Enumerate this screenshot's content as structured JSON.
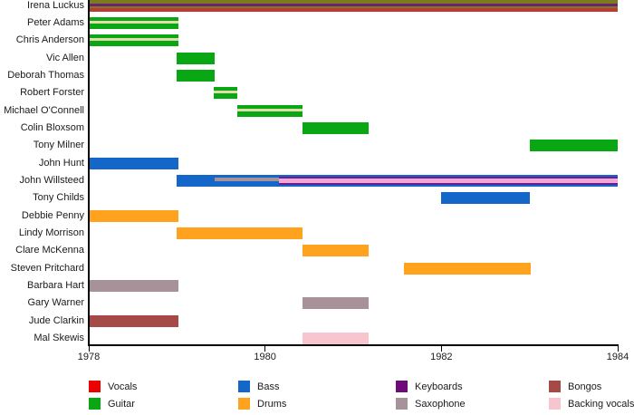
{
  "page": {
    "background": "#ffffff"
  },
  "palette": {
    "vocals": "#ee0000",
    "guitar": "#0aa715",
    "bass": "#1467c8",
    "drums": "#ffa21d",
    "keyboards": "#6d0b78",
    "saxophone": "#a7929a",
    "bongos": "#a54a47",
    "backing": "#f6c5ce",
    "olive": "#7c7a1e",
    "vocals_dark": "#c03a34",
    "keyboards_mid": "#6b2473",
    "cream": "#e2dbac",
    "willsteed_purple": "#651e93",
    "willsteed_pink": "#f2a7d2"
  },
  "legend": {
    "items": [
      {
        "label": "Vocals",
        "color_key": "vocals"
      },
      {
        "label": "Guitar",
        "color_key": "guitar"
      },
      {
        "label": "Bass",
        "color_key": "bass"
      },
      {
        "label": "Drums",
        "color_key": "drums"
      },
      {
        "label": "Keyboards",
        "color_key": "keyboards"
      },
      {
        "label": "Saxophone",
        "color_key": "saxophone"
      },
      {
        "label": "Bongos",
        "color_key": "bongos"
      },
      {
        "label": "Backing vocals",
        "color_key": "backing"
      }
    ]
  },
  "chart_data": {
    "type": "timeline",
    "title": "",
    "xlabel": "",
    "ylabel": "",
    "x_ticks": [
      {
        "label": "1978",
        "year": 1978
      },
      {
        "label": "1980",
        "year": 1980
      },
      {
        "label": "1982",
        "year": 1982
      },
      {
        "label": "1984",
        "year": 1984
      }
    ],
    "x_range": [
      1978,
      1984
    ],
    "grid": false,
    "legend_position": "bottom",
    "members": [
      {
        "name": "Irena Luckus",
        "roles": [
          "vocals",
          "guitar",
          "keyboards"
        ],
        "bars": [
          {
            "start": 1978.0,
            "end": 1984.0,
            "stripes": [
              [
                "olive",
                4
              ],
              [
                "keyboards_mid",
                3
              ],
              [
                "olive",
                2
              ],
              [
                "vocals_dark",
                4
              ]
            ]
          }
        ]
      },
      {
        "name": "Peter Adams",
        "roles": [
          "guitar",
          "backing vocals"
        ],
        "bars": [
          {
            "start": 1978.0,
            "end": 1979.02,
            "stripes": [
              [
                "guitar",
                4
              ],
              [
                "cream",
                3
              ],
              [
                "guitar",
                6
              ]
            ]
          }
        ]
      },
      {
        "name": "Chris Anderson",
        "roles": [
          "guitar",
          "backing vocals"
        ],
        "bars": [
          {
            "start": 1978.0,
            "end": 1979.02,
            "stripes": [
              [
                "guitar",
                4
              ],
              [
                "cream",
                3
              ],
              [
                "guitar",
                6
              ]
            ]
          }
        ]
      },
      {
        "name": "Vic Allen",
        "roles": [
          "guitar"
        ],
        "bars": [
          {
            "start": 1979.0,
            "end": 1979.43,
            "color_key": "guitar"
          }
        ]
      },
      {
        "name": "Deborah Thomas",
        "roles": [
          "guitar"
        ],
        "bars": [
          {
            "start": 1979.0,
            "end": 1979.43,
            "color_key": "guitar"
          }
        ]
      },
      {
        "name": "Robert Forster",
        "roles": [
          "guitar",
          "backing vocals"
        ],
        "bars": [
          {
            "start": 1979.42,
            "end": 1979.68,
            "stripes": [
              [
                "guitar",
                4
              ],
              [
                "cream",
                3
              ],
              [
                "guitar",
                6
              ]
            ]
          }
        ]
      },
      {
        "name": "Michael O'Connell",
        "roles": [
          "guitar",
          "backing vocals"
        ],
        "bars": [
          {
            "start": 1979.68,
            "end": 1980.42,
            "stripes": [
              [
                "guitar",
                4
              ],
              [
                "cream",
                3
              ],
              [
                "guitar",
                6
              ]
            ]
          }
        ]
      },
      {
        "name": "Colin Bloxsom",
        "roles": [
          "guitar"
        ],
        "bars": [
          {
            "start": 1980.42,
            "end": 1981.17,
            "color_key": "guitar"
          }
        ]
      },
      {
        "name": "Tony Milner",
        "roles": [
          "guitar"
        ],
        "bars": [
          {
            "start": 1983.0,
            "end": 1984.0,
            "color_key": "guitar"
          }
        ]
      },
      {
        "name": "John Hunt",
        "roles": [
          "bass"
        ],
        "bars": [
          {
            "start": 1978.0,
            "end": 1979.02,
            "color_key": "bass"
          }
        ]
      },
      {
        "name": "John Willsteed",
        "roles": [
          "bass",
          "saxophone",
          "keyboards",
          "backing vocals"
        ],
        "bars": [
          {
            "start": 1979.0,
            "end": 1979.43,
            "color_key": "bass"
          },
          {
            "start": 1979.43,
            "end": 1980.16,
            "stripes": [
              [
                "bass",
                3
              ],
              [
                "saxophone",
                4
              ],
              [
                "bass",
                6
              ]
            ]
          },
          {
            "start": 1980.16,
            "end": 1984.0,
            "stripes": [
              [
                "bass",
                2
              ],
              [
                "willsteed_purple",
                2
              ],
              [
                "willsteed_pink",
                5
              ],
              [
                "willsteed_purple",
                2
              ],
              [
                "bass",
                2
              ]
            ]
          }
        ]
      },
      {
        "name": "Tony Childs",
        "roles": [
          "bass"
        ],
        "bars": [
          {
            "start": 1982.0,
            "end": 1983.0,
            "color_key": "bass"
          }
        ]
      },
      {
        "name": "Debbie Penny",
        "roles": [
          "drums"
        ],
        "bars": [
          {
            "start": 1978.0,
            "end": 1979.02,
            "color_key": "drums"
          }
        ]
      },
      {
        "name": "Lindy Morrison",
        "roles": [
          "drums"
        ],
        "bars": [
          {
            "start": 1979.0,
            "end": 1980.42,
            "color_key": "drums"
          }
        ]
      },
      {
        "name": "Clare McKenna",
        "roles": [
          "drums"
        ],
        "bars": [
          {
            "start": 1980.42,
            "end": 1981.17,
            "color_key": "drums"
          }
        ]
      },
      {
        "name": "Steven Pritchard",
        "roles": [
          "drums"
        ],
        "bars": [
          {
            "start": 1981.58,
            "end": 1983.01,
            "color_key": "drums"
          }
        ]
      },
      {
        "name": "Barbara Hart",
        "roles": [
          "saxophone"
        ],
        "bars": [
          {
            "start": 1978.0,
            "end": 1979.02,
            "color_key": "saxophone"
          }
        ]
      },
      {
        "name": "Gary Warner",
        "roles": [
          "saxophone"
        ],
        "bars": [
          {
            "start": 1980.42,
            "end": 1981.17,
            "color_key": "saxophone"
          }
        ]
      },
      {
        "name": "Jude Clarkin",
        "roles": [
          "bongos"
        ],
        "bars": [
          {
            "start": 1978.0,
            "end": 1979.02,
            "color_key": "bongos"
          }
        ]
      },
      {
        "name": "Mal Skewis",
        "roles": [
          "backing vocals"
        ],
        "bars": [
          {
            "start": 1980.42,
            "end": 1981.17,
            "color_key": "backing"
          }
        ]
      }
    ]
  }
}
